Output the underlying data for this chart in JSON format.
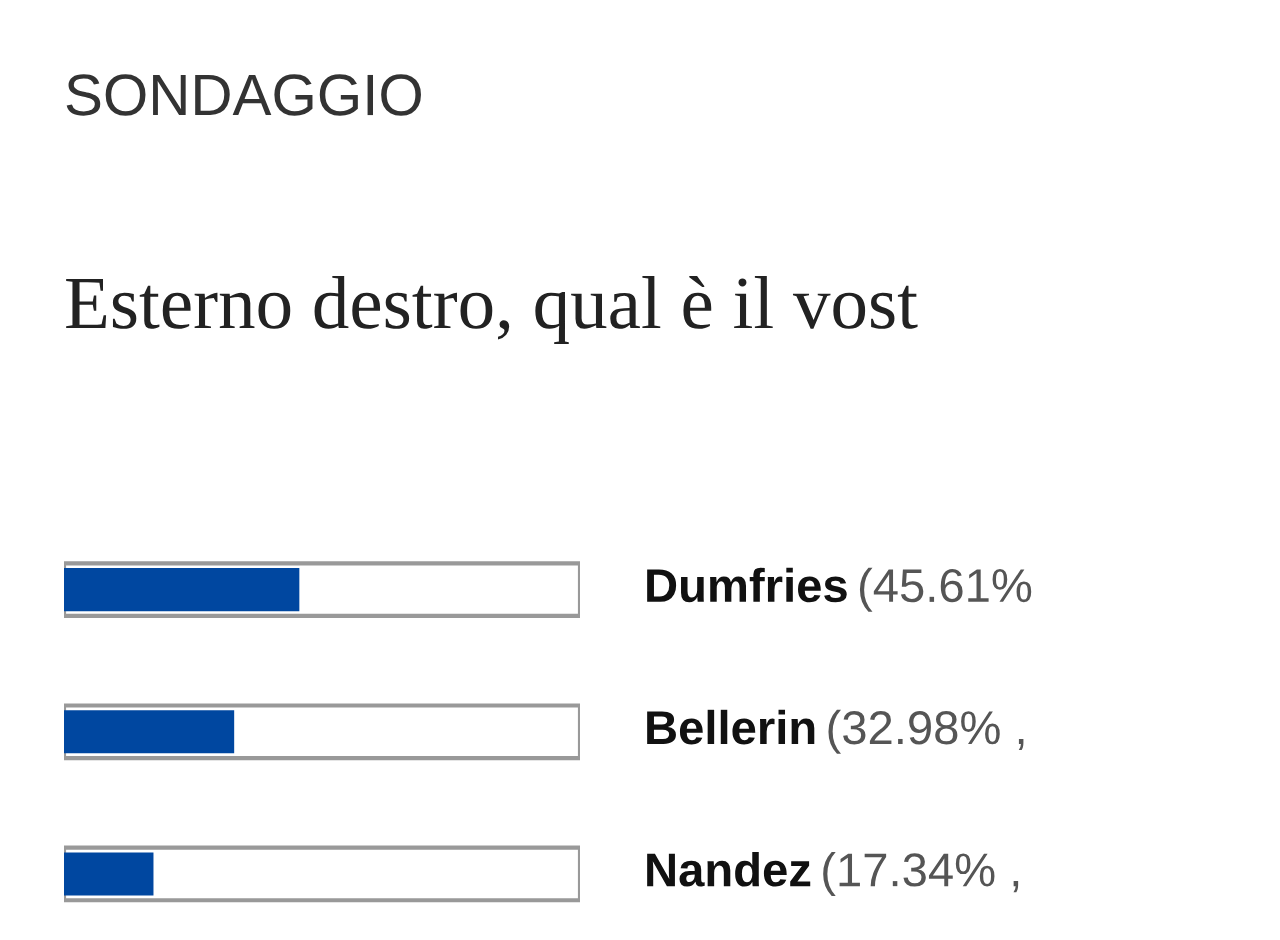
{
  "chart_data": {
    "type": "bar",
    "orientation": "horizontal",
    "title": "SONDAGGIO",
    "subtitle": "Esterno destro, qual è il vost",
    "categories": [
      "Dumfries",
      "Bellerin",
      "Nandez"
    ],
    "values": [
      45.61,
      32.98,
      17.34
    ],
    "value_labels": [
      "(45.61%",
      "(32.98% ,",
      "(17.34% ,"
    ],
    "color": "#0047a0",
    "xlim": [
      0,
      100
    ]
  }
}
